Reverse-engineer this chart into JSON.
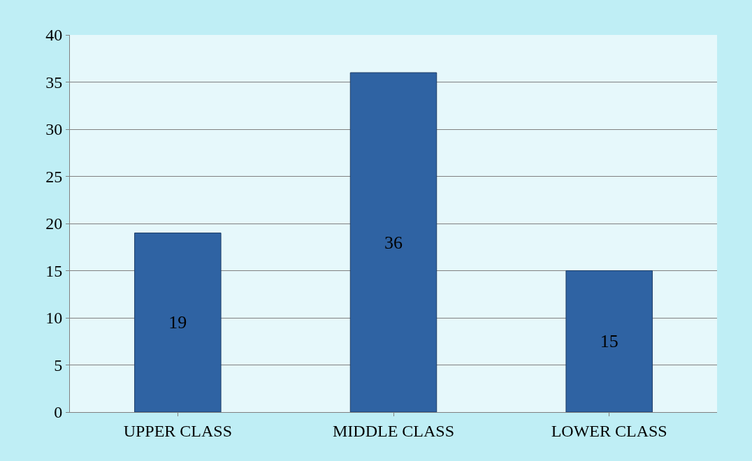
{
  "chart_data": {
    "type": "bar",
    "categories": [
      "UPPER CLASS",
      "MIDDLE CLASS",
      "LOWER CLASS"
    ],
    "values": [
      19,
      36,
      15
    ],
    "color": "#2f63a3",
    "ylim": [
      0,
      40
    ],
    "yticks": [
      0,
      5,
      10,
      15,
      20,
      25,
      30,
      35,
      40
    ],
    "grid": "y",
    "data_labels": true
  }
}
